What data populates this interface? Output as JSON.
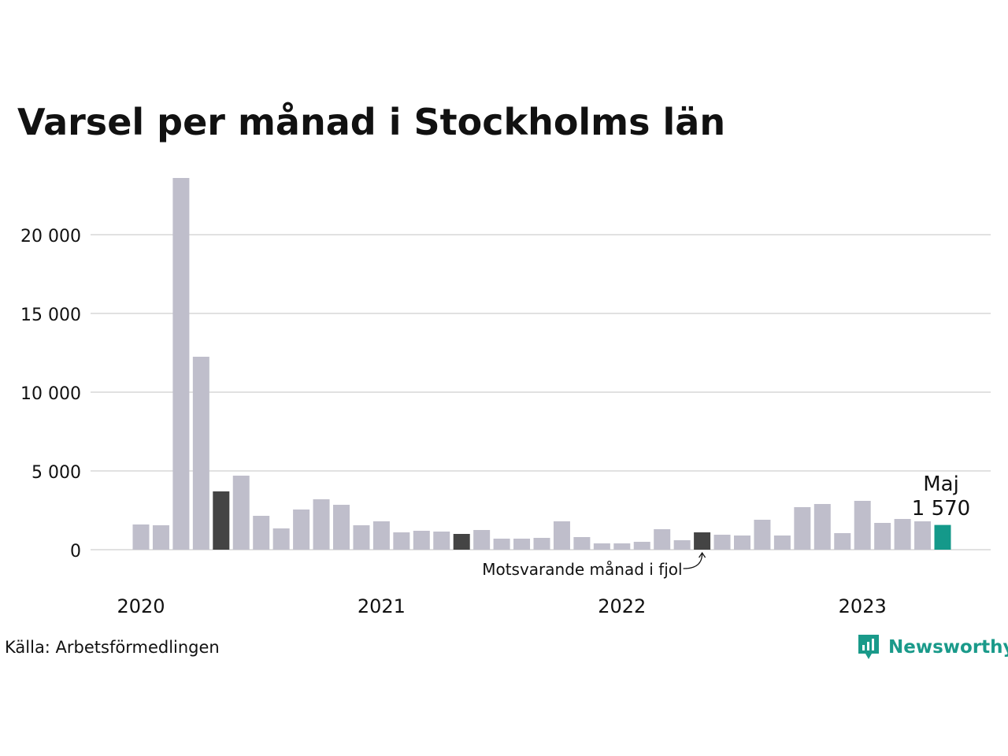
{
  "colors": {
    "bar_default": "#bfbecb",
    "bar_last_year": "#444444",
    "bar_current": "#14998a",
    "grid": "#e1e1e1",
    "brand": "#1a9a8a"
  },
  "chart_data": {
    "type": "bar",
    "title": "Varsel per månad i Stockholms län",
    "x_start": "2020-01",
    "year_labels": [
      "2020",
      "2021",
      "2022",
      "2023"
    ],
    "yticks": [
      0,
      5000,
      10000,
      15000,
      20000
    ],
    "ytick_labels": [
      "0",
      "5 000",
      "10 000",
      "15 000",
      "20 000"
    ],
    "ylim": [
      0,
      24000
    ],
    "grid": true,
    "values": [
      1600,
      1550,
      23600,
      12250,
      3700,
      4700,
      2150,
      1350,
      2550,
      3200,
      2850,
      1550,
      1800,
      1100,
      1200,
      1150,
      1000,
      1250,
      700,
      700,
      750,
      1800,
      800,
      400,
      400,
      500,
      1300,
      600,
      1100,
      950,
      900,
      1900,
      900,
      2700,
      2900,
      1050,
      3100,
      1700,
      1950,
      1800,
      1570
    ],
    "highlights": {
      "last_year_indices": [
        4,
        16,
        28
      ],
      "current_index": 40
    },
    "annotations": {
      "current_month": "Maj",
      "current_value": "1 570",
      "last_year_note": "Motsvarande månad i fjol"
    }
  },
  "source": "Källa: Arbetsförmedlingen",
  "brand": {
    "name": "Newsworthy",
    "icon": "newsworthy-logo-icon"
  }
}
